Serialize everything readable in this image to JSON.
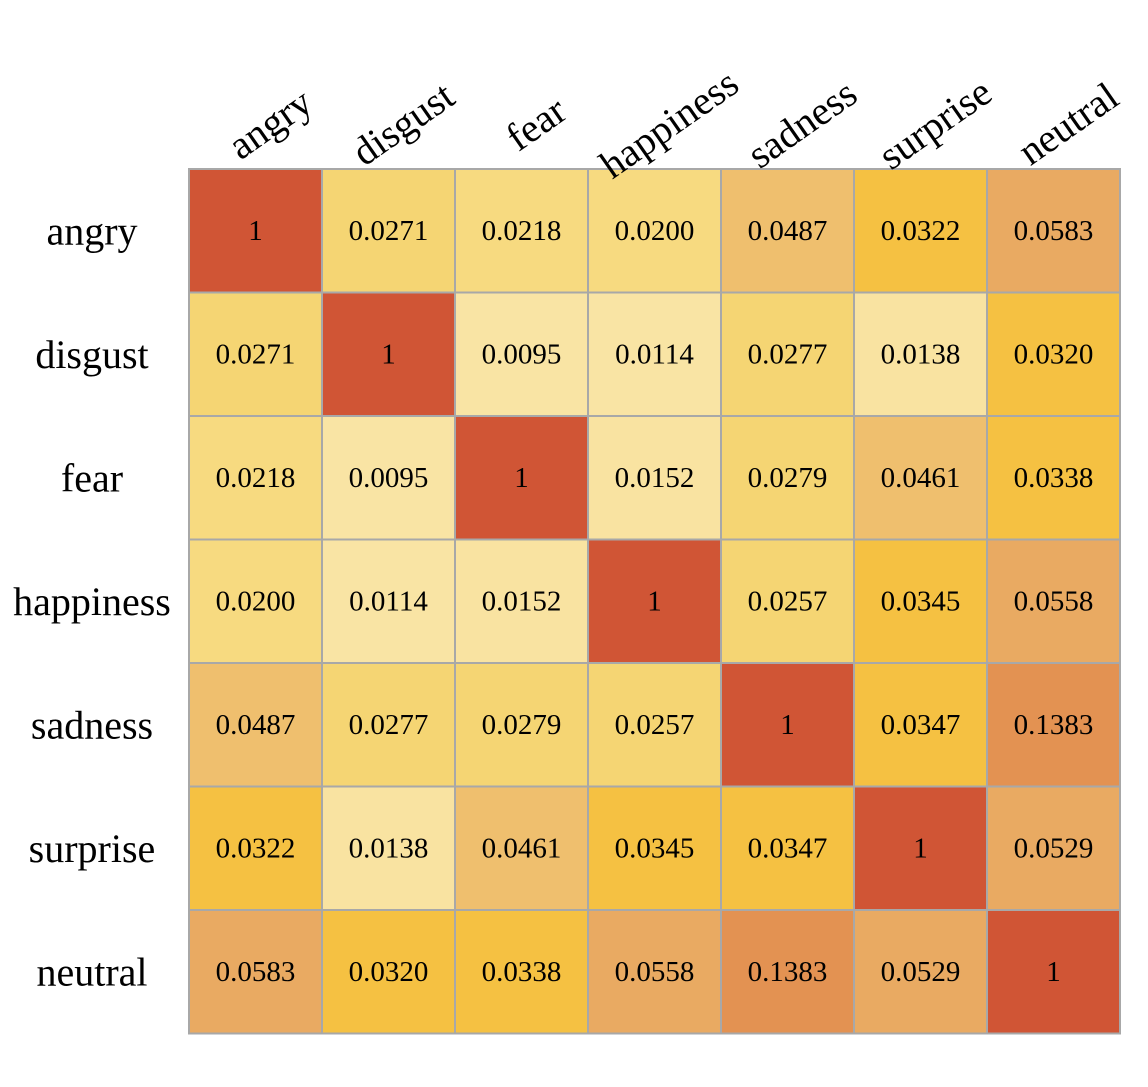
{
  "chart_data": {
    "type": "heatmap",
    "title": "",
    "xlabel": "",
    "ylabel": "",
    "x_labels": [
      "angry",
      "disgust",
      "fear",
      "happiness",
      "sadness",
      "surprise",
      "neutral"
    ],
    "y_labels": [
      "angry",
      "disgust",
      "fear",
      "happiness",
      "sadness",
      "surprise",
      "neutral"
    ],
    "values": [
      [
        1,
        0.0271,
        0.0218,
        0.02,
        0.0487,
        0.0322,
        0.0583
      ],
      [
        0.0271,
        1,
        0.0095,
        0.0114,
        0.0277,
        0.0138,
        0.032
      ],
      [
        0.0218,
        0.0095,
        1,
        0.0152,
        0.0279,
        0.0461,
        0.0338
      ],
      [
        0.02,
        0.0114,
        0.0152,
        1,
        0.0257,
        0.0345,
        0.0558
      ],
      [
        0.0487,
        0.0277,
        0.0279,
        0.0257,
        1,
        0.0347,
        0.1383
      ],
      [
        0.0322,
        0.0138,
        0.0461,
        0.0345,
        0.0347,
        1,
        0.0529
      ],
      [
        0.0583,
        0.032,
        0.0338,
        0.0558,
        0.1383,
        0.0529,
        1
      ]
    ],
    "cell_text": [
      [
        "1",
        "0.0271",
        "0.0218",
        "0.0200",
        "0.0487",
        "0.0322",
        "0.0583"
      ],
      [
        "0.0271",
        "1",
        "0.0095",
        "0.0114",
        "0.0277",
        "0.0138",
        "0.0320"
      ],
      [
        "0.0218",
        "0.0095",
        "1",
        "0.0152",
        "0.0279",
        "0.0461",
        "0.0338"
      ],
      [
        "0.0200",
        "0.0114",
        "0.0152",
        "1",
        "0.0257",
        "0.0345",
        "0.0558"
      ],
      [
        "0.0487",
        "0.0277",
        "0.0279",
        "0.0257",
        "1",
        "0.0347",
        "0.1383"
      ],
      [
        "0.0322",
        "0.0138",
        "0.0461",
        "0.0345",
        "0.0347",
        "1",
        "0.0529"
      ],
      [
        "0.0583",
        "0.0320",
        "0.0338",
        "0.0558",
        "0.1383",
        "0.0529",
        "1"
      ]
    ],
    "colors": {
      "diagonal": "#d05535",
      "grid_line": "#a8a8a8",
      "palette": [
        {
          "max": 0.012,
          "color": "#f9e4a4"
        },
        {
          "max": 0.0155,
          "color": "#f9e3a1"
        },
        {
          "max": 0.022,
          "color": "#f7da80"
        },
        {
          "max": 0.0285,
          "color": "#f5d573"
        },
        {
          "max": 0.036,
          "color": "#f5c142"
        },
        {
          "max": 0.049,
          "color": "#efbf6e"
        },
        {
          "max": 0.06,
          "color": "#e9aa62"
        },
        {
          "max": 0.5,
          "color": "#e39252"
        }
      ]
    },
    "grid": true,
    "legend": "none"
  }
}
